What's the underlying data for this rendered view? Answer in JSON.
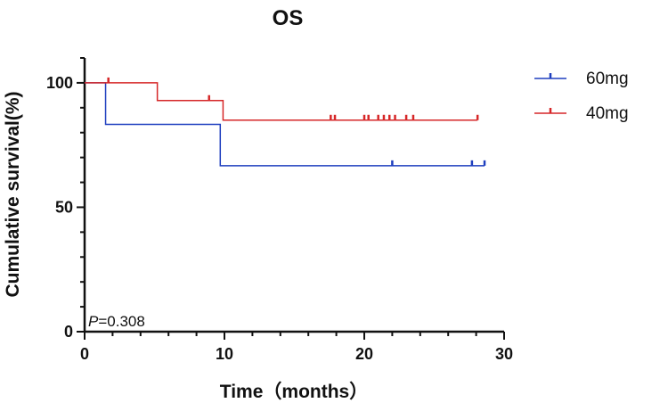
{
  "chart_data": {
    "type": "line",
    "subtype": "kaplan-meier",
    "title": "OS",
    "xlabel": "Time（months）",
    "ylabel": "Cumulative survival(%)",
    "xlim": [
      0,
      30
    ],
    "ylim": [
      0,
      110
    ],
    "xticks": [
      0,
      10,
      20,
      30
    ],
    "yticks": [
      0,
      50,
      100
    ],
    "grid": false,
    "legend_position": "top-right",
    "annotation": {
      "prefix": "P",
      "text": "=0.308"
    },
    "series": [
      {
        "name": "60mg",
        "color": "#1f3fbf",
        "steps": [
          [
            0,
            100
          ],
          [
            1.5,
            83.3
          ],
          [
            9.7,
            66.7
          ],
          [
            28.6,
            66.7
          ]
        ],
        "censored": [
          22.0,
          27.7,
          28.6
        ]
      },
      {
        "name": "40mg",
        "color": "#d62728",
        "steps": [
          [
            0,
            100
          ],
          [
            5.2,
            92.9
          ],
          [
            9.9,
            85.0
          ],
          [
            28.1,
            85.0
          ]
        ],
        "censored": [
          1.7,
          8.9,
          17.6,
          17.9,
          20.0,
          20.3,
          21.0,
          21.4,
          21.8,
          22.2,
          23.0,
          23.5,
          28.1
        ]
      }
    ]
  }
}
